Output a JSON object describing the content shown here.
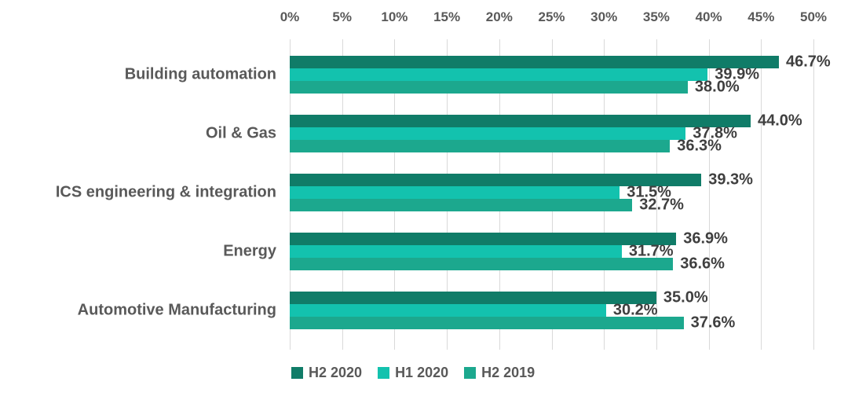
{
  "chart_data": {
    "type": "bar",
    "orientation": "horizontal",
    "title": "",
    "xlabel": "",
    "ylabel": "",
    "categories": [
      "Building automation",
      "Oil & Gas",
      "ICS engineering & integration",
      "Energy",
      "Automotive Manufacturing"
    ],
    "series": [
      {
        "name": "H2 2020",
        "color": "#107c68",
        "values": [
          46.7,
          44.0,
          39.3,
          36.9,
          35.0
        ]
      },
      {
        "name": "H1 2020",
        "color": "#13c2ae",
        "values": [
          39.9,
          37.8,
          31.5,
          31.7,
          30.2
        ]
      },
      {
        "name": "H2 2019",
        "color": "#1ca88e",
        "values": [
          38.0,
          36.3,
          32.7,
          36.6,
          37.6
        ]
      }
    ],
    "value_labels": [
      [
        "46.7%",
        "44.0%",
        "39.3%",
        "36.9%",
        "35.0%"
      ],
      [
        "39.9%",
        "37.8%",
        "31.5%",
        "31.7%",
        "30.2%"
      ],
      [
        "38.0%",
        "36.3%",
        "32.7%",
        "36.6%",
        "37.6%"
      ]
    ],
    "x_axis": {
      "position": "top",
      "min": 0,
      "max": 50,
      "tick_step": 5,
      "ticks": [
        "0%",
        "5%",
        "10%",
        "15%",
        "20%",
        "25%",
        "30%",
        "35%",
        "40%",
        "45%",
        "50%"
      ]
    },
    "grid": true,
    "legend": {
      "position": "bottom",
      "entries": [
        "H2 2020",
        "H1 2020",
        "H2 2019"
      ]
    }
  },
  "colors": {
    "background": "#ffffff",
    "gridline": "#d9d9d9",
    "axis_text": "#595959",
    "category_text": "#595959",
    "value_text": "#3f3f3f",
    "legend_text": "#595959"
  }
}
